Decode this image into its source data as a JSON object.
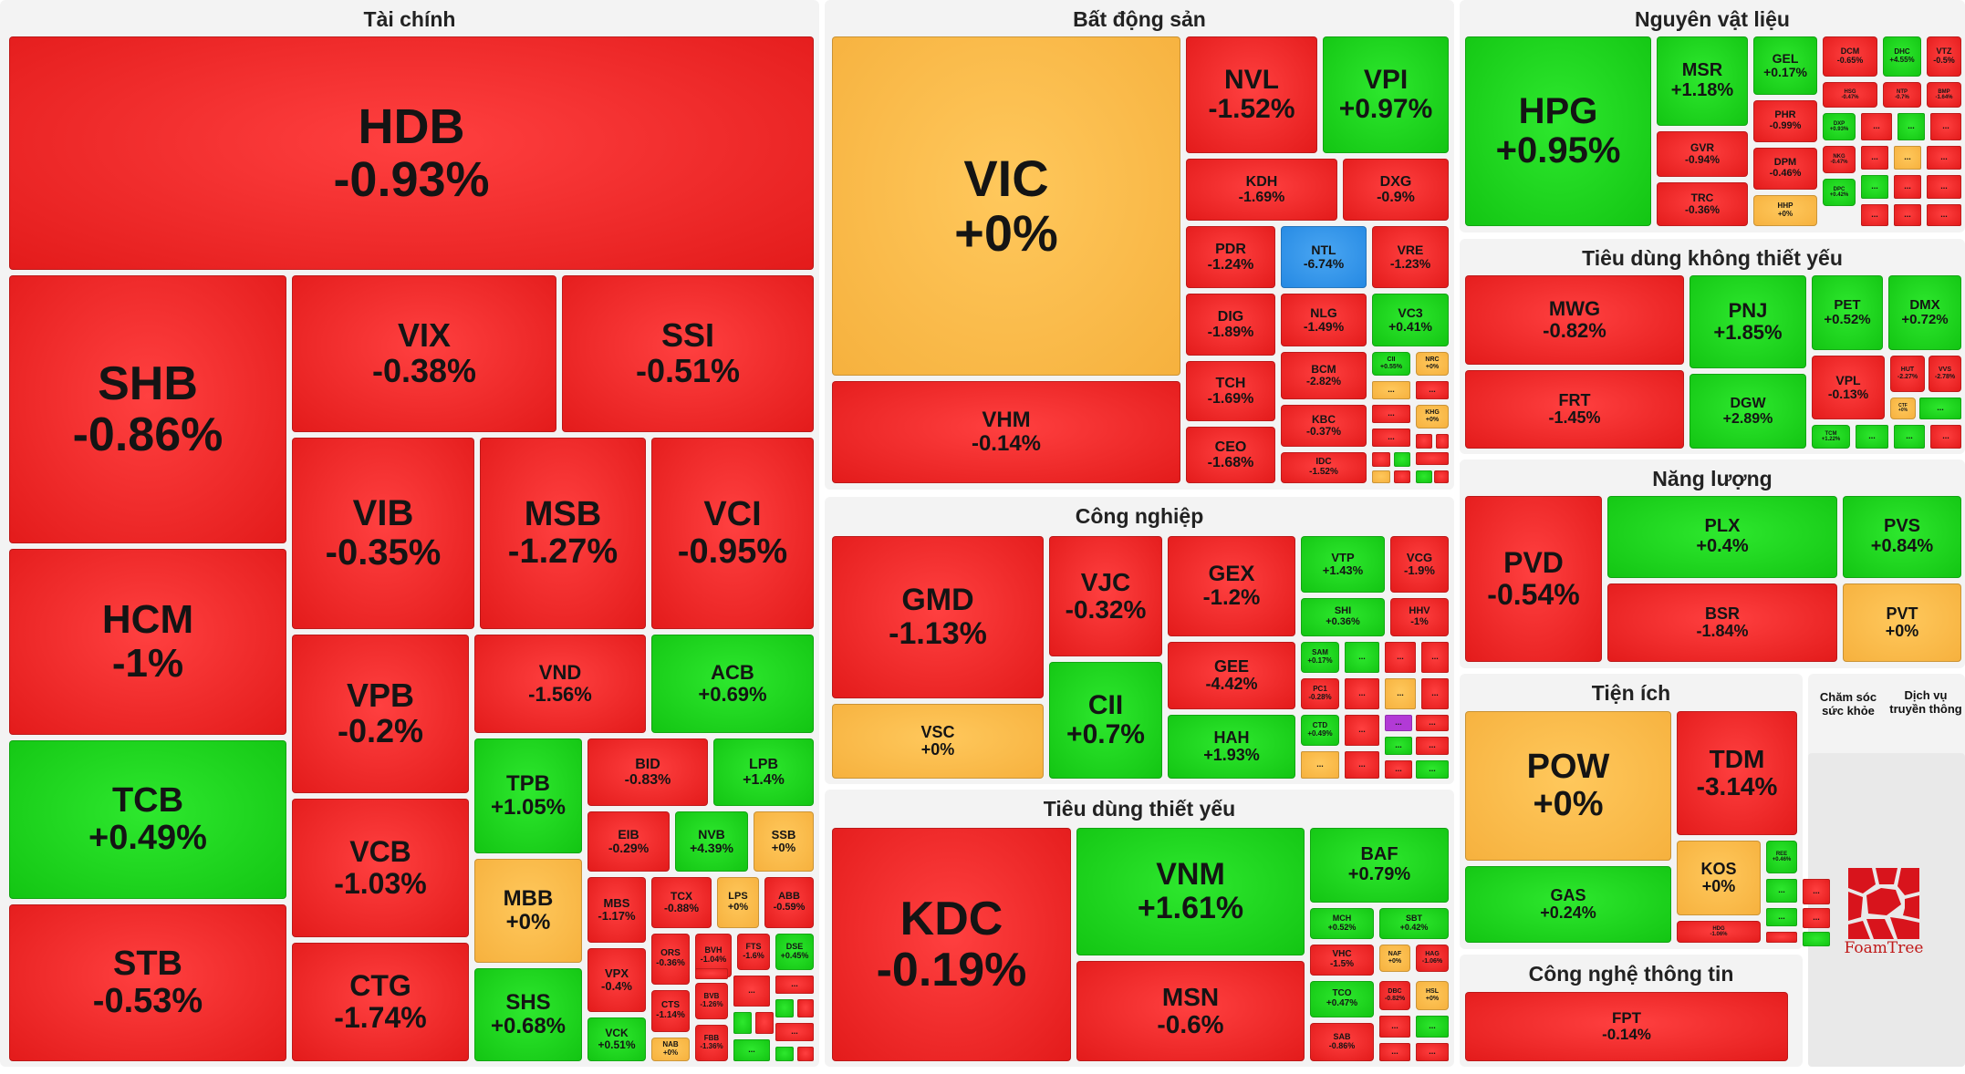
{
  "colors": {
    "up": "#13c513",
    "down": "#e31b1b",
    "flat": "#f6b13e",
    "floor": "#2589e3",
    "logo": "#d8141c"
  },
  "chart_data": {
    "type": "treemap",
    "title": "",
    "legend_meaning": {
      "green": "increase",
      "red": "decrease",
      "yellow": "unchanged",
      "blue": "floor price"
    },
    "sectors": [
      {
        "name": "Tài chính",
        "stocks": [
          {
            "ticker": "HDB",
            "change": "-0.93%"
          },
          {
            "ticker": "SHB",
            "change": "-0.86%"
          },
          {
            "ticker": "HCM",
            "change": "-1%"
          },
          {
            "ticker": "TCB",
            "change": "+0.49%"
          },
          {
            "ticker": "STB",
            "change": "-0.53%"
          },
          {
            "ticker": "VIX",
            "change": "-0.38%"
          },
          {
            "ticker": "SSI",
            "change": "-0.51%"
          },
          {
            "ticker": "VIB",
            "change": "-0.35%"
          },
          {
            "ticker": "MSB",
            "change": "-1.27%"
          },
          {
            "ticker": "VCI",
            "change": "-0.95%"
          },
          {
            "ticker": "VPB",
            "change": "-0.2%"
          },
          {
            "ticker": "VND",
            "change": "-1.56%"
          },
          {
            "ticker": "ACB",
            "change": "+0.69%"
          },
          {
            "ticker": "VCB",
            "change": "-1.03%"
          },
          {
            "ticker": "TPB",
            "change": "+1.05%"
          },
          {
            "ticker": "BID",
            "change": "-0.83%"
          },
          {
            "ticker": "LPB",
            "change": "+1.4%"
          },
          {
            "ticker": "EIB",
            "change": "-0.29%"
          },
          {
            "ticker": "NVB",
            "change": "+4.39%"
          },
          {
            "ticker": "SSB",
            "change": "+0%"
          },
          {
            "ticker": "MBB",
            "change": "+0%"
          },
          {
            "ticker": "MBS",
            "change": "-1.17%"
          },
          {
            "ticker": "TCX",
            "change": "-0.88%"
          },
          {
            "ticker": "LPS",
            "change": "+0%"
          },
          {
            "ticker": "ABB",
            "change": "-0.59%"
          },
          {
            "ticker": "CTG",
            "change": "-1.74%"
          },
          {
            "ticker": "SHS",
            "change": "+0.68%"
          },
          {
            "ticker": "VPX",
            "change": "-0.4%"
          },
          {
            "ticker": "ORS",
            "change": "-0.36%"
          },
          {
            "ticker": "BVH",
            "change": "-1.04%"
          },
          {
            "ticker": "FTS",
            "change": "-1.6%"
          },
          {
            "ticker": "DSE",
            "change": "+0.45%"
          },
          {
            "ticker": "CTS",
            "change": "-1.14%"
          },
          {
            "ticker": "BVB",
            "change": "-1.26%"
          },
          {
            "ticker": "VCK",
            "change": "+0.51%"
          },
          {
            "ticker": "FBB",
            "change": "-1.36%"
          },
          {
            "ticker": "NAB",
            "change": "+0%"
          }
        ]
      },
      {
        "name": "Bất động sản",
        "stocks": [
          {
            "ticker": "VIC",
            "change": "+0%"
          },
          {
            "ticker": "VHM",
            "change": "-0.14%"
          },
          {
            "ticker": "NVL",
            "change": "-1.52%"
          },
          {
            "ticker": "VPI",
            "change": "+0.97%"
          },
          {
            "ticker": "KDH",
            "change": "-1.69%"
          },
          {
            "ticker": "DXG",
            "change": "-0.9%"
          },
          {
            "ticker": "PDR",
            "change": "-1.24%"
          },
          {
            "ticker": "NTL",
            "change": "-6.74%"
          },
          {
            "ticker": "VRE",
            "change": "-1.23%"
          },
          {
            "ticker": "DIG",
            "change": "-1.89%"
          },
          {
            "ticker": "NLG",
            "change": "-1.49%"
          },
          {
            "ticker": "VC3",
            "change": "+0.41%"
          },
          {
            "ticker": "BCM",
            "change": "-2.82%"
          },
          {
            "ticker": "TCH",
            "change": "-1.69%"
          },
          {
            "ticker": "KBC",
            "change": "-0.37%"
          },
          {
            "ticker": "CEO",
            "change": "-1.68%"
          },
          {
            "ticker": "IDC",
            "change": "-1.52%"
          },
          {
            "ticker": "CII",
            "change": "+0.55%"
          },
          {
            "ticker": "NRC",
            "change": "+0%"
          },
          {
            "ticker": "KHG",
            "change": "+0%"
          }
        ]
      },
      {
        "name": "Công nghiệp",
        "stocks": [
          {
            "ticker": "GMD",
            "change": "-1.13%"
          },
          {
            "ticker": "VSC",
            "change": "+0%"
          },
          {
            "ticker": "VJC",
            "change": "-0.32%"
          },
          {
            "ticker": "CII",
            "change": "+0.7%"
          },
          {
            "ticker": "GEX",
            "change": "-1.2%"
          },
          {
            "ticker": "GEE",
            "change": "-4.42%"
          },
          {
            "ticker": "HAH",
            "change": "+1.93%"
          },
          {
            "ticker": "VTP",
            "change": "+1.43%"
          },
          {
            "ticker": "VCG",
            "change": "-1.9%"
          },
          {
            "ticker": "SHI",
            "change": "+0.36%"
          },
          {
            "ticker": "HHV",
            "change": "-1%"
          },
          {
            "ticker": "SAM",
            "change": "+0.17%"
          },
          {
            "ticker": "PC1",
            "change": "-0.28%"
          },
          {
            "ticker": "CTD",
            "change": "+0.49%"
          }
        ]
      },
      {
        "name": "Tiêu dùng thiết yếu",
        "stocks": [
          {
            "ticker": "KDC",
            "change": "-0.19%"
          },
          {
            "ticker": "VNM",
            "change": "+1.61%"
          },
          {
            "ticker": "MSN",
            "change": "-0.6%"
          },
          {
            "ticker": "BAF",
            "change": "+0.79%"
          },
          {
            "ticker": "MCH",
            "change": "+0.52%"
          },
          {
            "ticker": "SBT",
            "change": "+0.42%"
          },
          {
            "ticker": "VHC",
            "change": "-1.5%"
          },
          {
            "ticker": "NAF",
            "change": "+0%"
          },
          {
            "ticker": "HAG",
            "change": "-1.06%"
          },
          {
            "ticker": "TCO",
            "change": "+0.47%"
          },
          {
            "ticker": "DBC",
            "change": "-0.82%"
          },
          {
            "ticker": "HSL",
            "change": "+0%"
          },
          {
            "ticker": "SAB",
            "change": "-0.86%"
          }
        ]
      },
      {
        "name": "Nguyên vật liệu",
        "stocks": [
          {
            "ticker": "HPG",
            "change": "+0.95%"
          },
          {
            "ticker": "MSR",
            "change": "+1.18%"
          },
          {
            "ticker": "GEL",
            "change": "+0.17%"
          },
          {
            "ticker": "GVR",
            "change": "-0.94%"
          },
          {
            "ticker": "PHR",
            "change": "-0.99%"
          },
          {
            "ticker": "TRC",
            "change": "-0.36%"
          },
          {
            "ticker": "DPM",
            "change": "-0.46%"
          },
          {
            "ticker": "HHP",
            "change": "+0%"
          },
          {
            "ticker": "DCM",
            "change": "-0.65%"
          },
          {
            "ticker": "DHC",
            "change": "+4.55%"
          },
          {
            "ticker": "VTZ",
            "change": "-0.5%"
          },
          {
            "ticker": "HSG",
            "change": "-0.47%"
          },
          {
            "ticker": "NTP",
            "change": "-0.7%"
          },
          {
            "ticker": "BMP",
            "change": "-1.64%"
          },
          {
            "ticker": "DXP",
            "change": "+0.93%"
          },
          {
            "ticker": "NKG",
            "change": "-0.47%"
          },
          {
            "ticker": "DPC",
            "change": "+0.42%"
          }
        ]
      },
      {
        "name": "Tiêu dùng không thiết yếu",
        "stocks": [
          {
            "ticker": "MWG",
            "change": "-0.82%"
          },
          {
            "ticker": "PNJ",
            "change": "+1.85%"
          },
          {
            "ticker": "PET",
            "change": "+0.52%"
          },
          {
            "ticker": "DMX",
            "change": "+0.72%"
          },
          {
            "ticker": "FRT",
            "change": "-1.45%"
          },
          {
            "ticker": "DGW",
            "change": "+2.89%"
          },
          {
            "ticker": "VPL",
            "change": "-0.13%"
          },
          {
            "ticker": "HUT",
            "change": "-2.27%"
          },
          {
            "ticker": "VVS",
            "change": "-2.78%"
          },
          {
            "ticker": "CTF",
            "change": "+0%"
          },
          {
            "ticker": "TCM",
            "change": "+1.22%"
          }
        ]
      },
      {
        "name": "Năng lượng",
        "stocks": [
          {
            "ticker": "PVD",
            "change": "-0.54%"
          },
          {
            "ticker": "PLX",
            "change": "+0.4%"
          },
          {
            "ticker": "PVS",
            "change": "+0.84%"
          },
          {
            "ticker": "BSR",
            "change": "-1.84%"
          },
          {
            "ticker": "PVT",
            "change": "+0%"
          }
        ]
      },
      {
        "name": "Tiện ích",
        "stocks": [
          {
            "ticker": "POW",
            "change": "+0%"
          },
          {
            "ticker": "TDM",
            "change": "-3.14%"
          },
          {
            "ticker": "GAS",
            "change": "+0.24%"
          },
          {
            "ticker": "KOS",
            "change": "+0%"
          },
          {
            "ticker": "REE",
            "change": "+0.46%"
          },
          {
            "ticker": "HDG",
            "change": "-1.06%"
          }
        ]
      },
      {
        "name": "Công nghệ thông tin",
        "stocks": [
          {
            "ticker": "FPT",
            "change": "-0.14%"
          }
        ]
      },
      {
        "name": "Chăm sóc sức khỏe",
        "stocks": []
      },
      {
        "name": "Dịch vụ truyền thông",
        "stocks": []
      }
    ]
  },
  "sectors_text": {
    "tai_chinh": "Tài chính",
    "bat_dong_san": "Bất động sản",
    "cong_nghiep": "Công nghiệp",
    "tieu_dung_thiet_yeu": "Tiêu dùng thiết yếu",
    "nguyen_vat_lieu": "Nguyên vật liệu",
    "tieu_dung_khong_thiet_yeu": "Tiêu dùng không thiết yếu",
    "nang_luong": "Năng lượng",
    "tien_ich": "Tiện ích",
    "cong_nghe_thong_tin": "Công nghệ thông tin",
    "cham_soc_suc_khoe": "Chăm sóc sức khỏe",
    "dich_vu_truyen_thong": "Dịch vụ truyền thông"
  },
  "overflow_label": "...",
  "logo": {
    "text": "FoamTree",
    "icon": "foamtree-logo-icon"
  }
}
